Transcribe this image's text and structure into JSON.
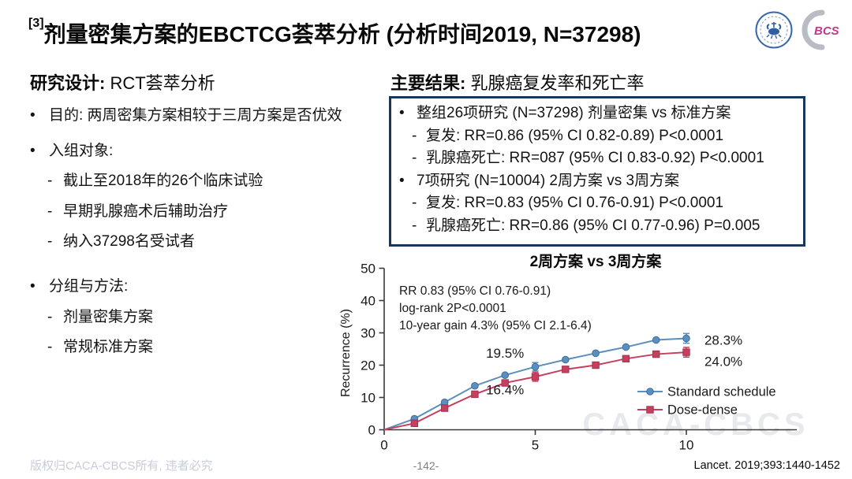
{
  "header": {
    "title_sup": "[3]",
    "title": "剂量密集方案的EBCTCG荟萃分析 (分析时间2019, N=37298)",
    "bcs_label": "BCS"
  },
  "left_panel": {
    "heading_bold": "研究设计:",
    "heading_normal": " RCT荟萃分析",
    "items": [
      {
        "type": "bullet",
        "text": "目的: 两周密集方案相较于三周方案是否优效"
      },
      {
        "type": "bullet",
        "text": "入组对象:"
      },
      {
        "type": "dash",
        "text": "截止至2018年的26个临床试验"
      },
      {
        "type": "dash",
        "text": "早期乳腺癌术后辅助治疗"
      },
      {
        "type": "dash",
        "text": "纳入37298名受试者"
      },
      {
        "type": "bullet",
        "gap": true,
        "text": "分组与方法:"
      },
      {
        "type": "dash",
        "text": "剂量密集方案"
      },
      {
        "type": "dash",
        "text": "常规标准方案"
      }
    ]
  },
  "right_panel": {
    "heading_bold": "主要结果:",
    "heading_normal": " 乳腺癌复发率和死亡率",
    "box_items": [
      {
        "type": "bullet",
        "text": "整组26项研究 (N=37298) 剂量密集 vs 标准方案"
      },
      {
        "type": "dash",
        "text": "复发: RR=0.86 (95% CI 0.82-0.89) P<0.0001"
      },
      {
        "type": "dash",
        "text": "乳腺癌死亡: RR=087 (95% CI 0.83-0.92) P<0.0001"
      },
      {
        "type": "bullet",
        "text": "7项研究 (N=10004) 2周方案 vs 3周方案"
      },
      {
        "type": "dash",
        "text": "复发: RR=0.83 (95% CI 0.76-0.91) P<0.0001"
      },
      {
        "type": "dash",
        "text": "乳腺癌死亡: RR=0.86 (95% CI 0.77-0.96) P=0.005"
      }
    ]
  },
  "chart_data": {
    "type": "line",
    "title": "2周方案 vs 3周方案",
    "xlabel": "",
    "ylabel": "Recurrence (%)",
    "xlim": [
      0,
      13.6
    ],
    "ylim": [
      0,
      50
    ],
    "xticks": [
      0,
      5,
      10
    ],
    "yticks": [
      0,
      10,
      20,
      30,
      40,
      50
    ],
    "x": [
      0,
      1,
      2,
      3,
      4,
      5,
      6,
      7,
      8,
      9,
      10
    ],
    "series": [
      {
        "name": "Standard schedule",
        "marker": "circle",
        "color": "#5b8fbe",
        "edge": "#3a6da0",
        "values": [
          0,
          3.4,
          8.5,
          13.6,
          16.9,
          19.5,
          21.7,
          23.7,
          25.6,
          27.8,
          28.3
        ]
      },
      {
        "name": "Dose-dense",
        "marker": "square",
        "color": "#c5405e",
        "edge": "#a52f4c",
        "values": [
          0,
          2.0,
          6.7,
          11.0,
          14.5,
          16.4,
          18.7,
          20.0,
          22.0,
          23.4,
          24.0
        ]
      }
    ],
    "error_bars": [
      {
        "series": 0,
        "x": 5,
        "low": 18.2,
        "high": 20.8
      },
      {
        "series": 0,
        "x": 10,
        "low": 26.8,
        "high": 29.8
      },
      {
        "series": 1,
        "x": 5,
        "low": 15.0,
        "high": 17.8
      },
      {
        "series": 1,
        "x": 10,
        "low": 22.5,
        "high": 25.5
      }
    ],
    "annotations": [
      "RR 0.83 (95% CI 0.76-0.91)",
      "log-rank 2P<0.0001",
      "10-year gain 4.3% (95% CI 2.1-6.4)"
    ],
    "point_labels": [
      {
        "text": "19.5%",
        "x": 4.0,
        "v": 22.3,
        "anchor": "middle"
      },
      {
        "text": "16.4%",
        "x": 4.0,
        "v": 11.0,
        "anchor": "middle"
      },
      {
        "text": "28.3%",
        "x": 10.6,
        "v": 26.3,
        "anchor": "start"
      },
      {
        "text": "24.0%",
        "x": 10.6,
        "v": 19.7,
        "anchor": "start"
      }
    ],
    "legend_position": "inside-right-bottom",
    "grid": false
  },
  "watermark": "CACA-CBCS",
  "footer": {
    "copyright": "版权归CACA-CBCS所有, 违者必究",
    "page": "-142-",
    "reference": "Lancet. 2019;393:1440-1452"
  },
  "colors": {
    "box_border_navy": "#17375d",
    "series_blue": "#5b8fbe",
    "series_red": "#c5405e",
    "watermark_gray": "#dfe2e7",
    "copyright_gray": "#c7cdd8",
    "page_gray": "#7f7f7f"
  }
}
